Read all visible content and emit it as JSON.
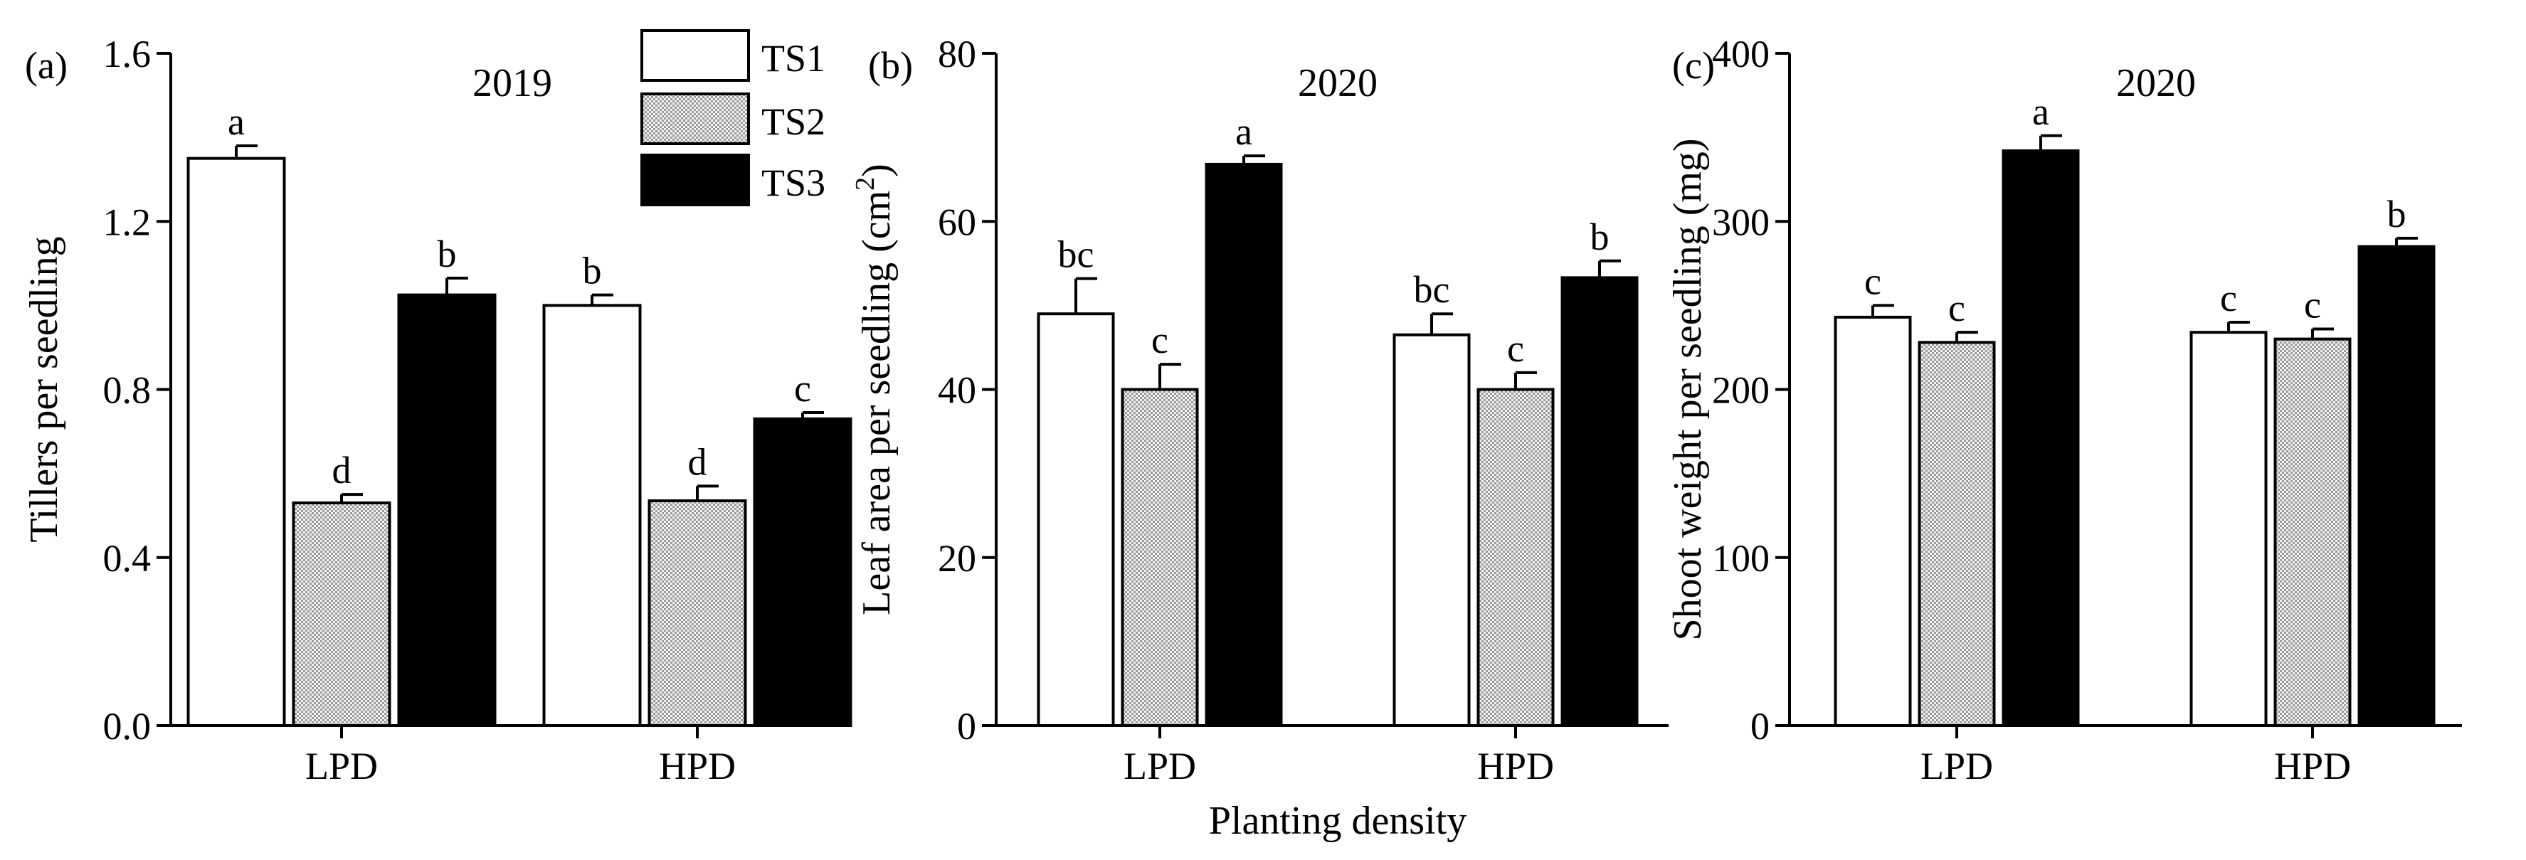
{
  "figure": {
    "xlabel": "Planting density"
  },
  "legend": {
    "entries": [
      {
        "name": "TS1",
        "style": "white"
      },
      {
        "name": "TS2",
        "style": "dotted"
      },
      {
        "name": "TS3",
        "style": "black"
      }
    ]
  },
  "colors": {
    "ts1_fill": "#ffffff",
    "ts2_fill": "#d9d9d9",
    "ts3_fill": "#000000",
    "axis": "#000000"
  },
  "chart_data": [
    {
      "type": "bar",
      "panel": "(a)",
      "title": "2019",
      "ylabel": "Tillers per seedling",
      "categories": [
        "LPD",
        "HPD"
      ],
      "ylim": [
        0,
        1.6
      ],
      "yticks": [
        "0.0",
        "0.4",
        "0.8",
        "1.2",
        "1.6"
      ],
      "ytick_values": [
        0,
        0.4,
        0.8,
        1.2,
        1.6
      ],
      "series": [
        {
          "name": "TS1",
          "values": [
            1.35,
            1.0
          ],
          "errors": [
            0.03,
            0.025
          ],
          "letters": [
            "a",
            "b"
          ]
        },
        {
          "name": "TS2",
          "values": [
            0.53,
            0.535
          ],
          "errors": [
            0.02,
            0.035
          ],
          "letters": [
            "d",
            "d"
          ]
        },
        {
          "name": "TS3",
          "values": [
            1.025,
            0.73
          ],
          "errors": [
            0.04,
            0.015
          ],
          "letters": [
            "b",
            "c"
          ]
        }
      ]
    },
    {
      "type": "bar",
      "panel": "(b)",
      "title": "2020",
      "ylabel": "Leaf area per seedling (cm²)",
      "ylabel_main": "Leaf area per seedling (cm",
      "ylabel_sup": "2",
      "ylabel_end": ")",
      "categories": [
        "LPD",
        "HPD"
      ],
      "ylim": [
        0,
        80
      ],
      "yticks": [
        "0",
        "20",
        "40",
        "60",
        "80"
      ],
      "ytick_values": [
        0,
        20,
        40,
        60,
        80
      ],
      "series": [
        {
          "name": "TS1",
          "values": [
            49,
            46.5
          ],
          "errors": [
            4.2,
            2.5
          ],
          "letters": [
            "bc",
            "bc"
          ]
        },
        {
          "name": "TS2",
          "values": [
            40,
            40
          ],
          "errors": [
            3.0,
            2.0
          ],
          "letters": [
            "c",
            "c"
          ]
        },
        {
          "name": "TS3",
          "values": [
            66.8,
            53.3
          ],
          "errors": [
            1.0,
            2.0
          ],
          "letters": [
            "a",
            "b"
          ]
        }
      ]
    },
    {
      "type": "bar",
      "panel": "(c)",
      "title": "2020",
      "ylabel": "Shoot weight per seedling (mg)",
      "categories": [
        "LPD",
        "HPD"
      ],
      "ylim": [
        0,
        400
      ],
      "yticks": [
        "0",
        "100",
        "200",
        "300",
        "400"
      ],
      "ytick_values": [
        0,
        100,
        200,
        300,
        400
      ],
      "series": [
        {
          "name": "TS1",
          "values": [
            243,
            234
          ],
          "errors": [
            7,
            6
          ],
          "letters": [
            "c",
            "c"
          ]
        },
        {
          "name": "TS2",
          "values": [
            228,
            230
          ],
          "errors": [
            6,
            6
          ],
          "letters": [
            "c",
            "c"
          ]
        },
        {
          "name": "TS3",
          "values": [
            342,
            285
          ],
          "errors": [
            9,
            5
          ],
          "letters": [
            "a",
            "b"
          ]
        }
      ]
    }
  ]
}
